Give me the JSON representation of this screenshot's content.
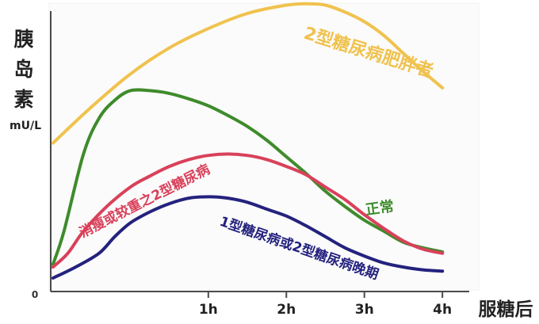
{
  "chart_data": {
    "type": "line",
    "ylabel_lines": [
      "胰",
      "岛",
      "素",
      "mU/L"
    ],
    "xlabel": "服糖后",
    "origin_label": "0",
    "x_ticks": [
      {
        "value": 1,
        "label": "1h"
      },
      {
        "value": 2,
        "label": "2h"
      },
      {
        "value": 3,
        "label": "3h"
      },
      {
        "value": 4,
        "label": "4h"
      }
    ],
    "xlim": [
      -1.06,
      4.1
    ],
    "ylim": [
      0,
      100
    ],
    "series": [
      {
        "name": "2型糖尿病肥胖者",
        "color": "#f0c24e",
        "x": [
          -0.99,
          -0.5,
          0.0,
          0.5,
          1.0,
          1.5,
          2.0,
          2.25,
          2.5,
          2.75,
          3.0,
          3.25,
          3.5,
          3.75,
          4.0
        ],
        "y": [
          51,
          64,
          76,
          85.5,
          92.5,
          98,
          101,
          101.5,
          101,
          98.5,
          95,
          90,
          83.5,
          77,
          71
        ]
      },
      {
        "name": "正常",
        "color": "#3e8b2b",
        "x": [
          -0.99,
          -0.85,
          -0.6,
          -0.4,
          -0.2,
          0.0,
          0.25,
          0.5,
          0.75,
          1.0,
          1.25,
          1.5,
          1.75,
          2.0,
          2.25,
          2.5,
          2.75,
          3.0,
          3.25,
          3.5,
          3.75,
          4.0
        ],
        "y": [
          7,
          19,
          47,
          60,
          66.5,
          70,
          70,
          69,
          67,
          64.5,
          61,
          57,
          52,
          46,
          40,
          33.5,
          28,
          23,
          19,
          15,
          13,
          11.5
        ]
      },
      {
        "name": "消瘦或较重之2型糖尿病",
        "color": "#d9415a",
        "x": [
          -0.99,
          -0.8,
          -0.6,
          -0.3,
          0.0,
          0.25,
          0.5,
          0.75,
          1.0,
          1.25,
          1.5,
          1.75,
          2.0,
          2.25,
          2.5,
          2.75,
          3.0,
          3.25,
          3.5,
          3.75,
          4.0
        ],
        "y": [
          6,
          11,
          19,
          28,
          35,
          39,
          42.5,
          45,
          46.5,
          47,
          46.5,
          45,
          42.5,
          39.5,
          35,
          30.5,
          25,
          20,
          15.5,
          12.5,
          11
        ]
      },
      {
        "name": "1型糖尿病或2型糖尿病晚期",
        "color": "#24227e",
        "x": [
          -0.99,
          -0.7,
          -0.4,
          -0.2,
          0.0,
          0.25,
          0.5,
          0.75,
          1.0,
          1.25,
          1.5,
          1.75,
          2.0,
          2.25,
          2.5,
          2.75,
          3.0,
          3.25,
          3.5,
          3.75,
          4.0
        ],
        "y": [
          2,
          6,
          11,
          17,
          22,
          26,
          29,
          31,
          31.5,
          31,
          29.5,
          27,
          24.5,
          21,
          17,
          13,
          10,
          7.5,
          6,
          5,
          4.5
        ]
      }
    ]
  }
}
